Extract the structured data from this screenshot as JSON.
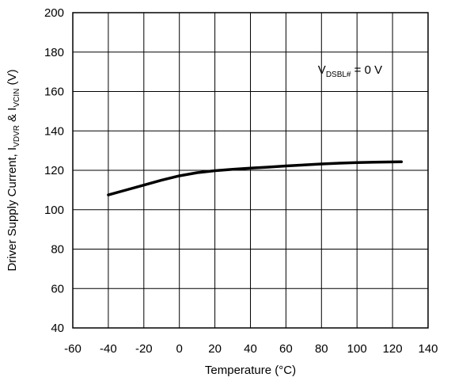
{
  "chart_data": {
    "type": "line",
    "title": "",
    "xlabel": "Temperature (°C)",
    "ylabel": {
      "base": "Driver Supply Current, I",
      "sub1": "VDVR",
      "mid": " & I",
      "sub2": "VCIN",
      "tail": " (V)"
    },
    "xlim": [
      -60,
      140
    ],
    "ylim": [
      40,
      200
    ],
    "x_ticks": [
      -60,
      -40,
      -20,
      0,
      20,
      40,
      60,
      80,
      100,
      120,
      140
    ],
    "y_ticks": [
      40,
      60,
      80,
      100,
      120,
      140,
      160,
      180,
      200
    ],
    "grid": true,
    "annotation": {
      "main": "V",
      "sub": "DSBL#",
      "tail": " = 0 V",
      "x": 78,
      "y": 169
    },
    "series": [
      {
        "x": [
          -40,
          -30,
          -20,
          -10,
          0,
          10,
          20,
          30,
          40,
          50,
          60,
          70,
          80,
          90,
          100,
          110,
          125
        ],
        "y": [
          107.5,
          110,
          112.5,
          115,
          117.2,
          118.8,
          119.8,
          120.5,
          121.1,
          121.6,
          122.2,
          122.7,
          123.2,
          123.6,
          123.9,
          124.1,
          124.3
        ],
        "color": "#000000"
      }
    ]
  }
}
